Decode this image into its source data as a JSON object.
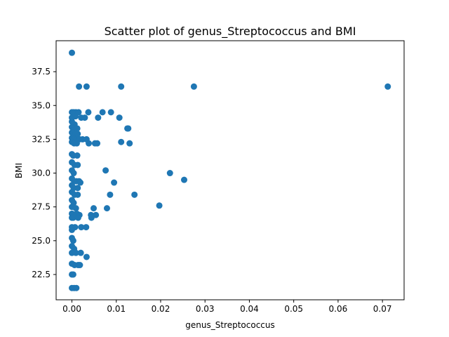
{
  "chart_data": {
    "type": "scatter",
    "title": "Scatter plot of genus_Streptococcus and BMI",
    "xlabel": "genus_Streptococcus",
    "ylabel": "BMI",
    "xlim": [
      -0.00356,
      0.07488
    ],
    "ylim": [
      20.63,
      39.79
    ],
    "xticks": [
      0.0,
      0.01,
      0.02,
      0.03,
      0.04,
      0.05,
      0.06,
      0.07
    ],
    "xtick_labels": [
      "0.00",
      "0.01",
      "0.02",
      "0.03",
      "0.04",
      "0.05",
      "0.06",
      "0.07"
    ],
    "yticks": [
      22.5,
      25.0,
      27.5,
      30.0,
      32.5,
      35.0,
      37.5
    ],
    "ytick_labels": [
      "22.5",
      "25.0",
      "27.5",
      "30.0",
      "32.5",
      "35.0",
      "37.5"
    ],
    "grid": false,
    "marker_color": "#1f77b4",
    "points": [
      {
        "x": 0.0,
        "y": 38.9
      },
      {
        "x": 0.0016,
        "y": 36.4
      },
      {
        "x": 0.0033,
        "y": 36.4
      },
      {
        "x": 0.0111,
        "y": 36.4
      },
      {
        "x": 0.0275,
        "y": 36.4
      },
      {
        "x": 0.0712,
        "y": 36.4
      },
      {
        "x": 0.0,
        "y": 34.5
      },
      {
        "x": 0.0004,
        "y": 34.5
      },
      {
        "x": 0.0009,
        "y": 34.5
      },
      {
        "x": 0.0015,
        "y": 34.5
      },
      {
        "x": 0.0037,
        "y": 34.5
      },
      {
        "x": 0.0069,
        "y": 34.5
      },
      {
        "x": 0.0088,
        "y": 34.5
      },
      {
        "x": 0.0,
        "y": 34.1
      },
      {
        "x": 0.0008,
        "y": 34.2
      },
      {
        "x": 0.0021,
        "y": 34.1
      },
      {
        "x": 0.0029,
        "y": 34.1
      },
      {
        "x": 0.0059,
        "y": 34.1
      },
      {
        "x": 0.0107,
        "y": 34.1
      },
      {
        "x": 0.0,
        "y": 33.8
      },
      {
        "x": 0.0006,
        "y": 33.6
      },
      {
        "x": 0.0,
        "y": 33.4
      },
      {
        "x": 0.0005,
        "y": 33.3
      },
      {
        "x": 0.0012,
        "y": 33.3
      },
      {
        "x": 0.0125,
        "y": 33.3
      },
      {
        "x": 0.0127,
        "y": 33.3
      },
      {
        "x": 0.0,
        "y": 33.0
      },
      {
        "x": 0.0008,
        "y": 32.9
      },
      {
        "x": 0.0013,
        "y": 32.9
      },
      {
        "x": 0.0,
        "y": 32.6
      },
      {
        "x": 0.0003,
        "y": 32.5
      },
      {
        "x": 0.0011,
        "y": 32.5
      },
      {
        "x": 0.0017,
        "y": 32.5
      },
      {
        "x": 0.0024,
        "y": 32.5
      },
      {
        "x": 0.0033,
        "y": 32.5
      },
      {
        "x": 0.0,
        "y": 32.3
      },
      {
        "x": 0.0005,
        "y": 32.2
      },
      {
        "x": 0.0011,
        "y": 32.2
      },
      {
        "x": 0.0038,
        "y": 32.2
      },
      {
        "x": 0.0052,
        "y": 32.2
      },
      {
        "x": 0.0057,
        "y": 32.2
      },
      {
        "x": 0.0111,
        "y": 32.3
      },
      {
        "x": 0.013,
        "y": 32.2
      },
      {
        "x": 0.0,
        "y": 31.4
      },
      {
        "x": 0.0003,
        "y": 31.3
      },
      {
        "x": 0.0012,
        "y": 31.3
      },
      {
        "x": 0.0,
        "y": 30.8
      },
      {
        "x": 0.0006,
        "y": 30.6
      },
      {
        "x": 0.0013,
        "y": 30.6
      },
      {
        "x": 0.0,
        "y": 30.2
      },
      {
        "x": 0.0004,
        "y": 30.0
      },
      {
        "x": 0.0076,
        "y": 30.2
      },
      {
        "x": 0.0221,
        "y": 30.0
      },
      {
        "x": 0.0,
        "y": 29.6
      },
      {
        "x": 0.0005,
        "y": 29.4
      },
      {
        "x": 0.001,
        "y": 29.4
      },
      {
        "x": 0.0016,
        "y": 29.4
      },
      {
        "x": 0.0019,
        "y": 29.3
      },
      {
        "x": 0.0095,
        "y": 29.3
      },
      {
        "x": 0.0253,
        "y": 29.5
      },
      {
        "x": 0.0,
        "y": 29.1
      },
      {
        "x": 0.0004,
        "y": 28.9
      },
      {
        "x": 0.0013,
        "y": 28.9
      },
      {
        "x": 0.0,
        "y": 28.6
      },
      {
        "x": 0.0006,
        "y": 28.4
      },
      {
        "x": 0.0013,
        "y": 28.4
      },
      {
        "x": 0.0086,
        "y": 28.4
      },
      {
        "x": 0.0141,
        "y": 28.4
      },
      {
        "x": 0.0,
        "y": 28.0
      },
      {
        "x": 0.0004,
        "y": 27.8
      },
      {
        "x": 0.0,
        "y": 27.5
      },
      {
        "x": 0.0009,
        "y": 27.4
      },
      {
        "x": 0.0049,
        "y": 27.4
      },
      {
        "x": 0.0079,
        "y": 27.4
      },
      {
        "x": 0.0197,
        "y": 27.6
      },
      {
        "x": 0.0,
        "y": 27.0
      },
      {
        "x": 0.0005,
        "y": 26.9
      },
      {
        "x": 0.0011,
        "y": 27.0
      },
      {
        "x": 0.0017,
        "y": 26.9
      },
      {
        "x": 0.0043,
        "y": 26.9
      },
      {
        "x": 0.0054,
        "y": 26.9
      },
      {
        "x": 0.0,
        "y": 26.7
      },
      {
        "x": 0.0003,
        "y": 26.7
      },
      {
        "x": 0.0014,
        "y": 26.7
      },
      {
        "x": 0.0044,
        "y": 26.7
      },
      {
        "x": 0.0,
        "y": 26.0
      },
      {
        "x": 0.0007,
        "y": 26.0
      },
      {
        "x": 0.0021,
        "y": 26.0
      },
      {
        "x": 0.0032,
        "y": 26.0
      },
      {
        "x": 0.0,
        "y": 25.8
      },
      {
        "x": 0.0,
        "y": 25.2
      },
      {
        "x": 0.0003,
        "y": 25.0
      },
      {
        "x": 0.0,
        "y": 24.6
      },
      {
        "x": 0.0005,
        "y": 24.4
      },
      {
        "x": 0.0,
        "y": 24.1
      },
      {
        "x": 0.0009,
        "y": 24.1
      },
      {
        "x": 0.002,
        "y": 24.1
      },
      {
        "x": 0.0033,
        "y": 23.8
      },
      {
        "x": 0.0,
        "y": 23.3
      },
      {
        "x": 0.0006,
        "y": 23.2
      },
      {
        "x": 0.0014,
        "y": 23.2
      },
      {
        "x": 0.0018,
        "y": 23.2
      },
      {
        "x": 0.0,
        "y": 22.5
      },
      {
        "x": 0.0003,
        "y": 22.5
      },
      {
        "x": 0.0,
        "y": 21.5
      },
      {
        "x": 0.0005,
        "y": 21.5
      },
      {
        "x": 0.001,
        "y": 21.5
      }
    ]
  }
}
